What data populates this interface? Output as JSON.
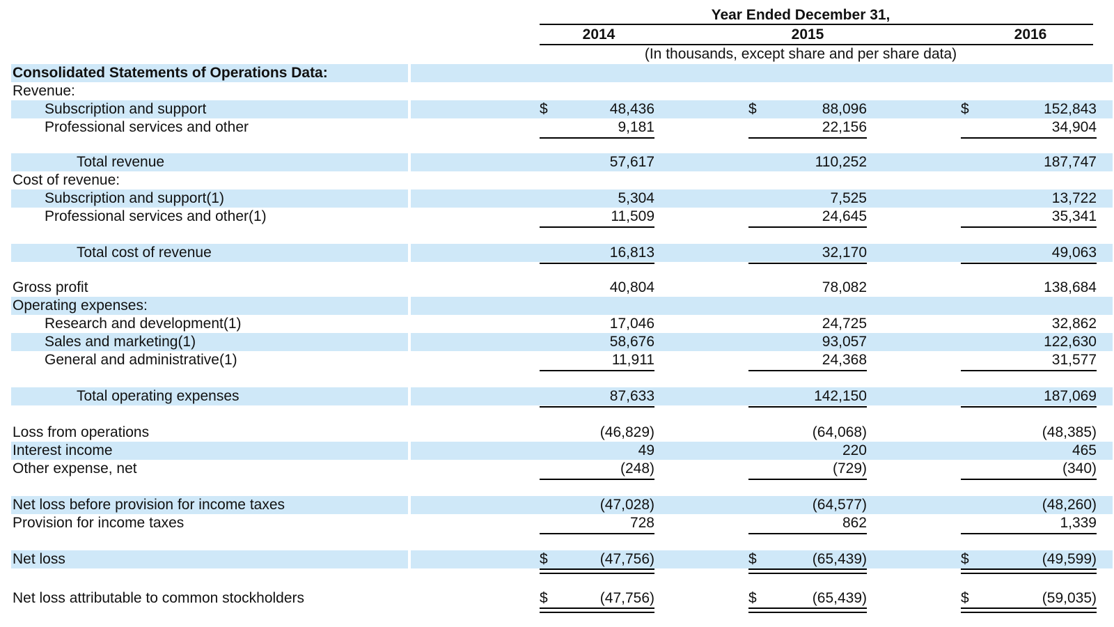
{
  "header": {
    "period": "Year Ended December 31,",
    "years": [
      "2014",
      "2015",
      "2016"
    ],
    "note": "(In thousands, except share and per share data)"
  },
  "colors": {
    "band": "#cfe8f8"
  },
  "rows": [
    {
      "label": "Consolidated Statements of Operations Data:",
      "bold": true,
      "indent": 0,
      "band": true,
      "values": [
        "",
        "",
        ""
      ]
    },
    {
      "label": "Revenue:",
      "indent": 0,
      "band": false,
      "values": [
        "",
        "",
        ""
      ]
    },
    {
      "label": "Subscription and support",
      "indent": 1,
      "band": true,
      "dollar": true,
      "values": [
        "48,436",
        "88,096",
        "152,843"
      ]
    },
    {
      "label": "Professional services and other",
      "indent": 1,
      "band": false,
      "values": [
        "9,181",
        "22,156",
        "34,904"
      ],
      "rule": "single"
    },
    {
      "label": "Total revenue",
      "indent": 2,
      "band": true,
      "values": [
        "57,617",
        "110,252",
        "187,747"
      ]
    },
    {
      "label": "Cost of revenue:",
      "indent": 0,
      "band": false,
      "values": [
        "",
        "",
        ""
      ]
    },
    {
      "label": "Subscription and support(1)",
      "indent": 1,
      "band": true,
      "values": [
        "5,304",
        "7,525",
        "13,722"
      ]
    },
    {
      "label": "Professional services and other(1)",
      "indent": 1,
      "band": false,
      "values": [
        "11,509",
        "24,645",
        "35,341"
      ],
      "rule": "single"
    },
    {
      "label": "Total cost of revenue",
      "indent": 2,
      "band": true,
      "values": [
        "16,813",
        "32,170",
        "49,063"
      ],
      "rule": "single"
    },
    {
      "label": "Gross profit",
      "indent": 0,
      "band": false,
      "values": [
        "40,804",
        "78,082",
        "138,684"
      ]
    },
    {
      "label": "Operating expenses:",
      "indent": 0,
      "band": true,
      "values": [
        "",
        "",
        ""
      ]
    },
    {
      "label": "Research and development(1)",
      "indent": 1,
      "band": false,
      "values": [
        "17,046",
        "24,725",
        "32,862"
      ]
    },
    {
      "label": "Sales and marketing(1)",
      "indent": 1,
      "band": true,
      "values": [
        "58,676",
        "93,057",
        "122,630"
      ]
    },
    {
      "label": "General and administrative(1)",
      "indent": 1,
      "band": false,
      "values": [
        "11,911",
        "24,368",
        "31,577"
      ],
      "rule": "single"
    },
    {
      "label": "Total operating expenses",
      "indent": 2,
      "band": true,
      "values": [
        "87,633",
        "142,150",
        "187,069"
      ],
      "rule": "single"
    },
    {
      "label": "Loss from operations",
      "indent": 0,
      "band": false,
      "values": [
        "(46,829)",
        "(64,068)",
        "(48,385)"
      ]
    },
    {
      "label": "Interest income",
      "indent": 0,
      "band": true,
      "values": [
        "49",
        "220",
        "465"
      ]
    },
    {
      "label": "Other expense, net",
      "indent": 0,
      "band": false,
      "values": [
        "(248)",
        "(729)",
        "(340)"
      ],
      "rule": "single"
    },
    {
      "label": "Net loss before provision for income taxes",
      "indent": 0,
      "band": true,
      "values": [
        "(47,028)",
        "(64,577)",
        "(48,260)"
      ]
    },
    {
      "label": "Provision for income taxes",
      "indent": 0,
      "band": false,
      "values": [
        "728",
        "862",
        "1,339"
      ],
      "rule": "single"
    },
    {
      "label": "Net loss",
      "indent": 0,
      "band": true,
      "dollar": true,
      "values": [
        "(47,756)",
        "(65,439)",
        "(49,599)"
      ],
      "rule": "double"
    },
    {
      "label": "Net loss attributable to common stockholders",
      "indent": 0,
      "band": false,
      "dollar": true,
      "values": [
        "(47,756)",
        "(65,439)",
        "(59,035)"
      ],
      "rule": "double"
    }
  ]
}
